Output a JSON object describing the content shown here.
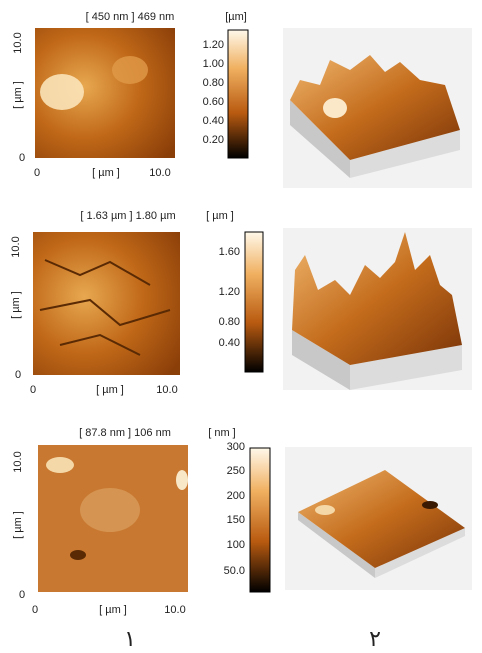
{
  "panels": [
    {
      "header": "[ 450 nm ] 469 nm",
      "unit": "[µm]",
      "y_label": "[ µm ]",
      "x_label": "[ µm ]",
      "y_ticks": [
        "0",
        "10.0"
      ],
      "x_ticks": [
        "0",
        "10.0"
      ],
      "colorbar_ticks": [
        "1.20",
        "1.00",
        "0.80",
        "0.60",
        "0.40",
        "0.20"
      ]
    },
    {
      "header": "[ 1.63 µm ] 1.80 µm",
      "unit": "[ µm ]",
      "y_label": "[ µm ]",
      "x_label": "[ µm ]",
      "y_ticks": [
        "0",
        "10.0"
      ],
      "x_ticks": [
        "0",
        "10.0"
      ],
      "colorbar_ticks": [
        "1.60",
        "1.20",
        "0.80",
        "0.40"
      ]
    },
    {
      "header": "[ 87.8 nm ] 106 nm",
      "unit": "[ nm ]",
      "y_label": "[ µm ]",
      "x_label": "[ µm ]",
      "y_ticks": [
        "0",
        "10.0"
      ],
      "x_ticks": [
        "0",
        "10.0"
      ],
      "colorbar_ticks": [
        "300",
        "250",
        "200",
        "150",
        "100",
        "50.0"
      ]
    }
  ],
  "column_labels": [
    "١",
    "٢"
  ]
}
